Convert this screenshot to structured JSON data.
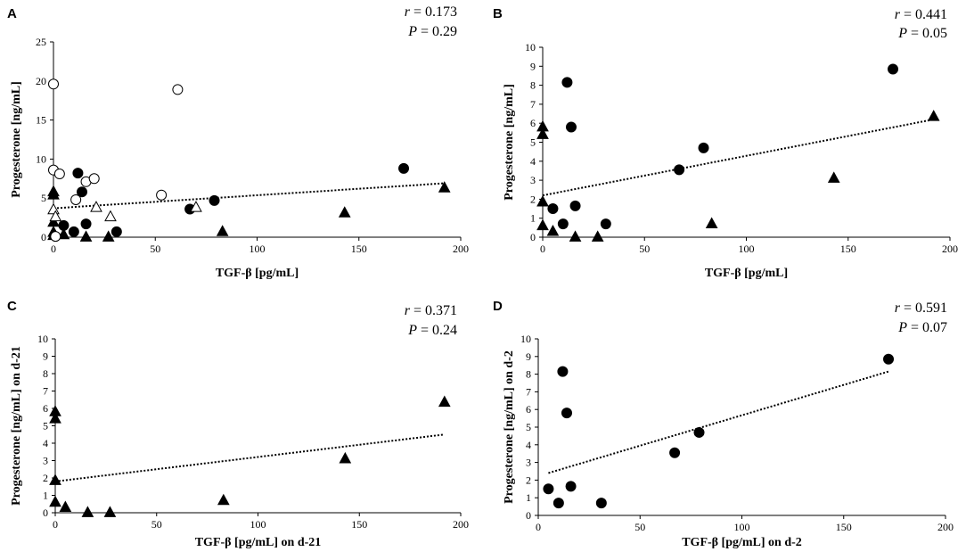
{
  "chart_data": [
    {
      "panel": "A",
      "type": "scatter",
      "stat_r_label": "r",
      "stat_r_value": "= 0.173",
      "stat_p_label": "P",
      "stat_p_value": "= 0.29",
      "xlabel": "TGF-β [pg/mL]",
      "ylabel": "Progesterone [ng/mL]",
      "xlim": [
        0,
        200
      ],
      "ylim": [
        0,
        25
      ],
      "xticks": [
        0,
        50,
        100,
        150,
        200
      ],
      "yticks": [
        0,
        5,
        10,
        15,
        20,
        25
      ],
      "xtick_labels": [
        "0",
        "50",
        "100",
        "150",
        "200"
      ],
      "ytick_labels": [
        "0",
        "5",
        "10",
        "15",
        "20",
        "25"
      ],
      "trendline": {
        "x": [
          0,
          192
        ],
        "y": [
          3.7,
          6.9
        ]
      },
      "series": [
        {
          "name": "filled circle",
          "marker": "circle",
          "fill": "#000000",
          "x": [
            5,
            10,
            12,
            14,
            16,
            31,
            67,
            79,
            172
          ],
          "y": [
            1.5,
            0.7,
            8.2,
            5.8,
            1.7,
            0.7,
            3.6,
            4.7,
            8.8
          ]
        },
        {
          "name": "filled triangle",
          "marker": "triangle",
          "fill": "#000000",
          "x": [
            0,
            0,
            0,
            0,
            0,
            5,
            16,
            27,
            83,
            143,
            192
          ],
          "y": [
            5.8,
            5.4,
            1.9,
            0.6,
            0.2,
            0.3,
            0,
            0,
            0.7,
            3.1,
            6.3
          ]
        },
        {
          "name": "open circle",
          "marker": "circle",
          "fill": "#ffffff",
          "x": [
            0,
            0,
            1,
            3,
            11,
            16,
            20,
            53,
            61
          ],
          "y": [
            19.6,
            8.6,
            0.1,
            8.1,
            4.8,
            7.1,
            7.5,
            5.4,
            18.9
          ]
        },
        {
          "name": "open triangle",
          "marker": "triangle",
          "fill": "#ffffff",
          "x": [
            0,
            1,
            21,
            28,
            70
          ],
          "y": [
            3.5,
            2.6,
            3.8,
            2.6,
            3.8
          ]
        }
      ]
    },
    {
      "panel": "B",
      "type": "scatter",
      "stat_r_label": "r",
      "stat_r_value": "= 0.441",
      "stat_p_label": "P",
      "stat_p_value": "= 0.05",
      "xlabel": "TGF-β [pg/mL]",
      "ylabel": "Progesterone [ng/mL]",
      "xlim": [
        0,
        200
      ],
      "ylim": [
        0,
        10
      ],
      "xticks": [
        0,
        50,
        100,
        150,
        200
      ],
      "yticks": [
        0,
        1,
        2,
        3,
        4,
        5,
        6,
        7,
        8,
        9,
        10
      ],
      "xtick_labels": [
        "0",
        "50",
        "100",
        "150",
        "200"
      ],
      "ytick_labels": [
        "0",
        "1",
        "2",
        "3",
        "4",
        "5",
        "6",
        "7",
        "8",
        "9",
        "10"
      ],
      "trendline": {
        "x": [
          0,
          192
        ],
        "y": [
          2.2,
          6.2
        ]
      },
      "series": [
        {
          "name": "filled circle",
          "marker": "circle",
          "fill": "#000000",
          "x": [
            5,
            10,
            12,
            14,
            16,
            31,
            67,
            79,
            172
          ],
          "y": [
            1.5,
            0.7,
            8.15,
            5.8,
            1.65,
            0.7,
            3.55,
            4.7,
            8.85
          ]
        },
        {
          "name": "filled triangle",
          "marker": "triangle",
          "fill": "#000000",
          "x": [
            0,
            0,
            0,
            0,
            5,
            16,
            27,
            83,
            143,
            192
          ],
          "y": [
            5.8,
            5.4,
            1.85,
            0.6,
            0.3,
            0,
            0,
            0.7,
            3.1,
            6.35
          ]
        }
      ]
    },
    {
      "panel": "C",
      "type": "scatter",
      "stat_r_label": "r",
      "stat_r_value": "= 0.371",
      "stat_p_label": "P",
      "stat_p_value": "= 0.24",
      "xlabel": "TGF-β [pg/mL] on d-21",
      "ylabel": "Progesterone [ng/mL] on d-21",
      "xlim": [
        0,
        200
      ],
      "ylim": [
        0,
        10
      ],
      "xticks": [
        0,
        50,
        100,
        150,
        200
      ],
      "yticks": [
        0,
        1,
        2,
        3,
        4,
        5,
        6,
        7,
        8,
        9,
        10
      ],
      "xtick_labels": [
        "0",
        "50",
        "100",
        "150",
        "200"
      ],
      "ytick_labels": [
        "0",
        "1",
        "2",
        "3",
        "4",
        "5",
        "6",
        "7",
        "8",
        "9",
        "10"
      ],
      "trendline": {
        "x": [
          0,
          192
        ],
        "y": [
          1.8,
          4.5
        ]
      },
      "series": [
        {
          "name": "filled triangle",
          "marker": "triangle",
          "fill": "#000000",
          "x": [
            0,
            0,
            0,
            0,
            5,
            16,
            27,
            83,
            143,
            192
          ],
          "y": [
            5.8,
            5.4,
            1.85,
            0.6,
            0.3,
            0,
            0,
            0.7,
            3.1,
            6.35
          ]
        }
      ]
    },
    {
      "panel": "D",
      "type": "scatter",
      "stat_r_label": "r",
      "stat_r_value": "= 0.591",
      "stat_p_label": "P",
      "stat_p_value": "= 0.07",
      "xlabel": "TGF-β [pg/mL] on d-2",
      "ylabel": "Progesterone [ng/mL] on d-2",
      "xlim": [
        0,
        200
      ],
      "ylim": [
        0,
        10
      ],
      "xticks": [
        0,
        50,
        100,
        150,
        200
      ],
      "yticks": [
        0,
        1,
        2,
        3,
        4,
        5,
        6,
        7,
        8,
        9,
        10
      ],
      "xtick_labels": [
        "0",
        "50",
        "100",
        "150",
        "200"
      ],
      "ytick_labels": [
        "0",
        "1",
        "2",
        "3",
        "4",
        "5",
        "6",
        "7",
        "8",
        "9",
        "10"
      ],
      "trendline": {
        "x": [
          5,
          172
        ],
        "y": [
          2.4,
          8.15
        ]
      },
      "series": [
        {
          "name": "filled circle",
          "marker": "circle",
          "fill": "#000000",
          "x": [
            5,
            10,
            12,
            14,
            16,
            31,
            67,
            79,
            172
          ],
          "y": [
            1.5,
            0.7,
            8.15,
            5.8,
            1.65,
            0.7,
            3.55,
            4.7,
            8.85
          ]
        }
      ]
    }
  ]
}
